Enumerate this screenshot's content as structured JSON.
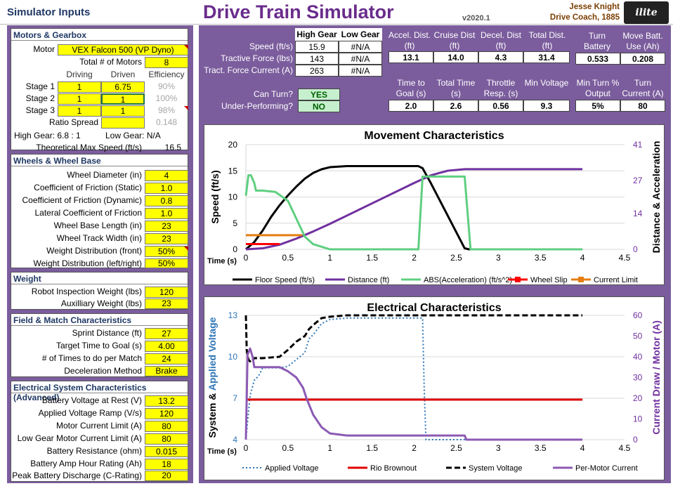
{
  "header": {
    "inputs_title": "Simulator Inputs",
    "title": "Drive Train Simulator",
    "version": "v2020.1",
    "author": "Jesse Knight",
    "role": "Drive Coach, 1885",
    "logo": "ilite"
  },
  "motors": {
    "title": "Motors & Gearbox",
    "motor_label": "Motor",
    "motor_value": "VEX Falcon 500 (VP Dyno)",
    "total_label": "Total # of Motors",
    "total_value": "8",
    "col_driving": "Driving",
    "col_driven": "Driven",
    "col_eff": "Efficiency",
    "stages": [
      {
        "label": "Stage 1",
        "driving": "1",
        "driven": "6.75",
        "eff": "90%"
      },
      {
        "label": "Stage 2",
        "driving": "1",
        "driven": "1",
        "eff": "100%"
      },
      {
        "label": "Stage 3",
        "driving": "1",
        "driven": "1",
        "eff": "98%"
      }
    ],
    "ratio_label": "Ratio Spread",
    "ratio_eff": "0.148",
    "high_gear": "High Gear: 6.8 : 1",
    "low_gear": "Low Gear: N/A",
    "max_speed_label": "Theoretical Max Speed (ft/s)",
    "max_speed_value": "16.5"
  },
  "wheels": {
    "title": "Wheels & Wheel Base",
    "rows": [
      {
        "label": "Wheel Diameter (in)",
        "value": "4"
      },
      {
        "label": "Coefficient of Friction (Static)",
        "value": "1.0"
      },
      {
        "label": "Coefficient of Friction (Dynamic)",
        "value": "0.8"
      },
      {
        "label": "Lateral Coefficient of Friction",
        "value": "1.0"
      },
      {
        "label": "Wheel Base Length (in)",
        "value": "23"
      },
      {
        "label": "Wheel Track Width (in)",
        "value": "23"
      },
      {
        "label": "Weight Distribution (front)",
        "value": "50%"
      },
      {
        "label": "Weight Distribution (left/right)",
        "value": "50%"
      }
    ]
  },
  "weight": {
    "title": "Weight",
    "rows": [
      {
        "label": "Robot Inspection Weight (lbs)",
        "value": "120"
      },
      {
        "label": "Auxilliary Weight (lbs)",
        "value": "23"
      }
    ]
  },
  "field": {
    "title": "Field & Match Characteristics",
    "rows": [
      {
        "label": "Sprint Distance (ft)",
        "value": "27"
      },
      {
        "label": "Target  Time to Goal (s)",
        "value": "4.00"
      },
      {
        "label": "# of Times to do per Match",
        "value": "24"
      },
      {
        "label": "Deceleration Method",
        "value": "Brake"
      }
    ]
  },
  "electrical": {
    "title": "Electrical System Characteristics (Advanced)",
    "rows": [
      {
        "label": "Battery Voltage at Rest (V)",
        "value": "13.2"
      },
      {
        "label": "Applied Voltage Ramp (V/s)",
        "value": "120"
      },
      {
        "label": "Motor Current Limit (A)",
        "value": "80"
      },
      {
        "label": "Low Gear Motor Current Limit (A)",
        "value": "80"
      },
      {
        "label": "Battery Resistance (ohm)",
        "value": "0.015"
      },
      {
        "label": "Battery Amp Hour Rating (Ah)",
        "value": "18"
      },
      {
        "label": "Peak Battery Discharge (C-Rating)",
        "value": "20"
      }
    ]
  },
  "results": {
    "high_gear": "High Gear",
    "low_gear": "Low Gear",
    "rows": [
      {
        "label": "Speed (ft/s)",
        "high": "15.9",
        "low": "#N/A"
      },
      {
        "label": "Tractive Force (lbs)",
        "high": "143",
        "low": "#N/A"
      },
      {
        "label": "Tract. Force Current (A)",
        "high": "263",
        "low": "#N/A"
      }
    ],
    "can_turn_label": "Can Turn?",
    "can_turn_value": "YES",
    "under_label": "Under-Performing?",
    "under_value": "NO",
    "stats1": [
      {
        "h": "Accel. Dist. (ft)",
        "v": "13.1"
      },
      {
        "h": "Cruise Dist (ft)",
        "v": "14.0"
      },
      {
        "h": "Decel. Dist (ft)",
        "v": "4.3"
      },
      {
        "h": "Total Dist. (ft)",
        "v": "31.4"
      }
    ],
    "stats2": [
      {
        "h": "Turn Battery Use (Ah)",
        "v": "0.533"
      },
      {
        "h": "Move Batt. Use (Ah)",
        "v": "0.208"
      }
    ],
    "stats3": [
      {
        "h": "Time to Goal (s)",
        "v": "2.0"
      },
      {
        "h": "Total Time (s)",
        "v": "2.6"
      },
      {
        "h": "Throttle Resp. (s)",
        "v": "0.56"
      },
      {
        "h": "Min Voltage",
        "v": "9.3"
      }
    ],
    "stats4": [
      {
        "h": "Min Turn % Output",
        "v": "5%"
      },
      {
        "h": "Turn Current (A)",
        "v": "80"
      }
    ]
  },
  "chart_data": [
    {
      "type": "line",
      "title": "Movement Characteristics",
      "xlabel": "Time (s)",
      "ylabel": "Speed (ft/s)",
      "y2label": "Distance & Acceleration",
      "xlim": [
        0,
        4.5
      ],
      "xticks": [
        "0",
        "0.5",
        "1",
        "1.5",
        "2",
        "2.5",
        "3",
        "3.5",
        "4",
        "4.5"
      ],
      "ylim": [
        0,
        20
      ],
      "yticks": [
        "0",
        "5",
        "10",
        "15",
        "20"
      ],
      "y2lim": [
        0,
        41
      ],
      "y2ticks": [
        "0",
        "14",
        "27",
        "41"
      ],
      "legend_position": "bottom",
      "colors": {
        "floor": "#000000",
        "distance": "#7030a0",
        "abs": "#5fcf80",
        "slip": "#ff0000",
        "limit": "#e57e10"
      },
      "series": [
        {
          "name": "Floor Speed (ft/s)",
          "axis": "left",
          "x": [
            0,
            0.1,
            0.2,
            0.3,
            0.4,
            0.5,
            0.6,
            0.7,
            0.8,
            0.9,
            1.0,
            1.2,
            1.5,
            1.8,
            2.05,
            2.1,
            2.2,
            2.4,
            2.6,
            2.65,
            4.0
          ],
          "y": [
            0,
            1.4,
            3.6,
            6.2,
            8.4,
            10.3,
            12.0,
            13.5,
            14.6,
            15.3,
            15.7,
            15.9,
            15.9,
            15.9,
            15.9,
            15.5,
            12.6,
            6.4,
            0.2,
            0,
            0
          ]
        },
        {
          "name": "Distance (ft)",
          "axis": "right",
          "x": [
            0,
            0.2,
            0.4,
            0.6,
            0.8,
            1.0,
            1.5,
            2.0,
            2.2,
            2.4,
            2.6,
            4.0
          ],
          "y": [
            0,
            0.4,
            1.8,
            4.2,
            7.0,
            10.0,
            18.0,
            26.0,
            29.0,
            30.8,
            31.4,
            31.4
          ]
        },
        {
          "name": "ABS(Acceleration) (ft/s^2)",
          "axis": "right",
          "x": [
            0,
            0.03,
            0.06,
            0.1,
            0.12,
            0.2,
            0.35,
            0.5,
            0.6,
            0.7,
            0.8,
            0.9,
            1.0,
            2.05,
            2.1,
            2.6,
            2.67,
            4.0
          ],
          "y": [
            21,
            29,
            29,
            26,
            23,
            23,
            22.5,
            19,
            12,
            5,
            2,
            1,
            0,
            0,
            28.5,
            28.5,
            0,
            0
          ]
        },
        {
          "name": "Wheel Slip",
          "axis": "left",
          "x": [
            0,
            0.4
          ],
          "y": [
            1.0,
            1.0
          ]
        },
        {
          "name": "Current Limit",
          "axis": "left",
          "x": [
            0,
            0.67
          ],
          "y": [
            2.7,
            2.7
          ]
        }
      ]
    },
    {
      "type": "line",
      "title": "Electrical Characteristics",
      "xlabel": "Time (s)",
      "ylabel": "System & Applied Voltage",
      "y2label": "Current Draw / Motor (A)",
      "xlim": [
        0,
        4.5
      ],
      "xticks": [
        "0",
        "0.5",
        "1",
        "1.5",
        "2",
        "2.5",
        "3",
        "3.5",
        "4",
        "4.5"
      ],
      "ylim": [
        4,
        13
      ],
      "yticks": [
        "4",
        "7",
        "10",
        "13"
      ],
      "y2lim": [
        0,
        60
      ],
      "y2ticks": [
        "0",
        "10",
        "20",
        "30",
        "40",
        "50",
        "60"
      ],
      "legend_position": "bottom",
      "colors": {
        "applied": "#2e75b6",
        "brownout": "#e00000",
        "system": "#000000",
        "current": "#8c5ab4"
      },
      "series": [
        {
          "name": "Applied Voltage",
          "axis": "left",
          "x": [
            0,
            0.05,
            0.1,
            0.15,
            0.2,
            0.4,
            0.5,
            0.6,
            0.7,
            0.75,
            0.8,
            0.9,
            1.0,
            1.2,
            1.5,
            2.1,
            2.12,
            2.14,
            4.0
          ],
          "y": [
            4,
            7.2,
            8.3,
            8.6,
            9.2,
            9.2,
            9.3,
            9.8,
            10.3,
            11.3,
            11.6,
            12.4,
            12.7,
            12.8,
            12.8,
            12.8,
            7.5,
            4,
            4
          ]
        },
        {
          "name": "Rio Brownout",
          "axis": "left",
          "x": [
            0,
            4.0
          ],
          "y": [
            6.9,
            6.9
          ]
        },
        {
          "name": "System Voltage",
          "axis": "left",
          "x": [
            0,
            0.01,
            0.03,
            0.06,
            0.1,
            0.2,
            0.4,
            0.5,
            0.6,
            0.7,
            0.75,
            0.8,
            0.9,
            1.0,
            1.2,
            1.5,
            4.0
          ],
          "y": [
            13,
            10.5,
            9.8,
            9.6,
            9.9,
            9.9,
            10.0,
            10.5,
            11.1,
            11.5,
            12.0,
            12.3,
            12.8,
            12.9,
            13.0,
            13.0,
            13.0
          ]
        },
        {
          "name": "Per-Motor Current",
          "axis": "right",
          "x": [
            0,
            0.02,
            0.05,
            0.08,
            0.1,
            0.15,
            0.2,
            0.4,
            0.5,
            0.6,
            0.68,
            0.72,
            0.8,
            0.9,
            1.0,
            1.2,
            2.1,
            2.6,
            2.62,
            4.0
          ],
          "y": [
            0,
            41,
            44,
            40,
            35,
            35,
            35,
            35,
            33,
            30,
            25,
            20,
            12,
            6,
            3,
            2,
            2,
            2,
            0,
            0
          ]
        }
      ]
    }
  ]
}
